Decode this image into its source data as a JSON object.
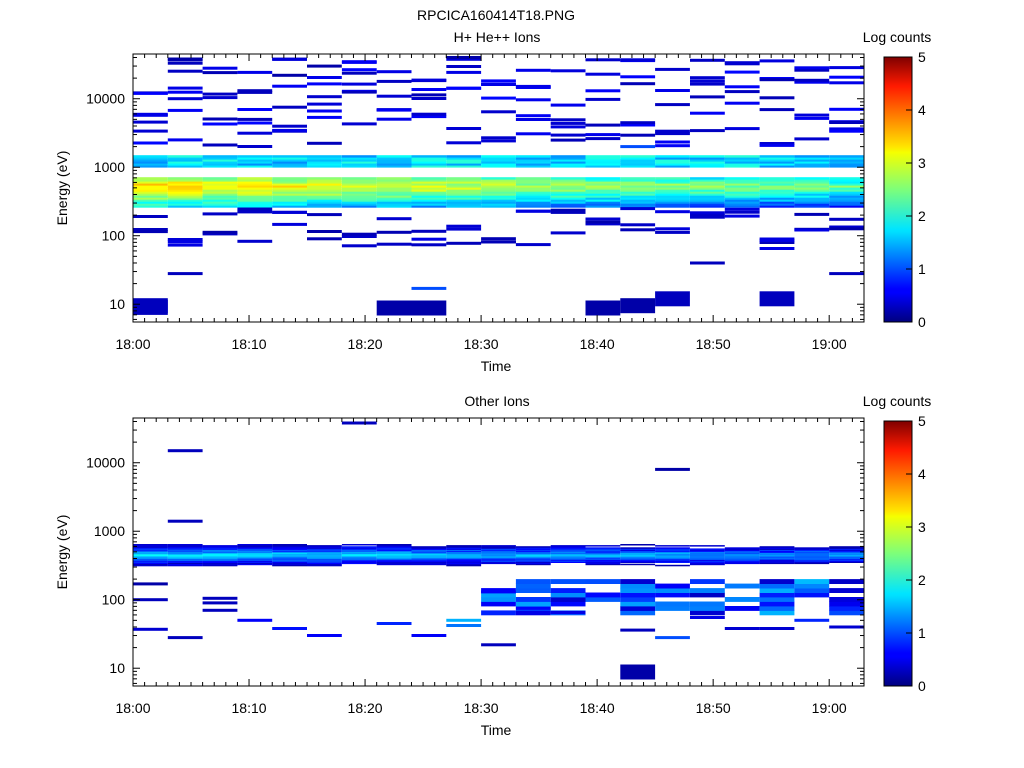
{
  "figure": {
    "title": "RPCICA160414T18.PNG"
  },
  "chart_data": [
    {
      "type": "heatmap",
      "title": "H+ He++ Ions",
      "xlabel": "Time",
      "ylabel": "Energy (eV)",
      "x_range": [
        "18:00",
        "19:03"
      ],
      "x_ticks": [
        "18:00",
        "18:10",
        "18:20",
        "18:30",
        "18:40",
        "18:50",
        "19:00"
      ],
      "y_scale": "log",
      "y_range": [
        5.5,
        45000
      ],
      "y_ticks": [
        "10",
        "100",
        "1000",
        "10000"
      ],
      "colorbar": {
        "label": "Log counts",
        "range": [
          0,
          5
        ],
        "ticks": [
          "0",
          "1",
          "2",
          "3",
          "4",
          "5"
        ]
      },
      "time_bins": [
        "18:00",
        "18:03",
        "18:06",
        "18:09",
        "18:12",
        "18:15",
        "18:18",
        "18:21",
        "18:24",
        "18:27",
        "18:30",
        "18:33",
        "18:36",
        "18:39",
        "18:42",
        "18:45",
        "18:48",
        "18:51",
        "18:54",
        "18:57",
        "19:00"
      ],
      "cells": [
        [
          0,
          9,
          0.3
        ],
        [
          0,
          9.5,
          0.3
        ],
        [
          1,
          28,
          0.3
        ],
        [
          1,
          38000,
          0.2
        ],
        [
          1,
          33000,
          0.3
        ],
        [
          3,
          5000,
          0.3
        ],
        [
          4,
          22000,
          0.2
        ],
        [
          5,
          30000,
          0.2
        ],
        [
          6,
          12500,
          0.3
        ],
        [
          7,
          8.8,
          0.2
        ],
        [
          8,
          8.8,
          0.2
        ],
        [
          8,
          17,
          1.0
        ],
        [
          9,
          40000,
          0.2
        ],
        [
          13,
          8.8,
          0.2
        ],
        [
          14,
          9.5,
          0.2
        ],
        [
          14,
          2000,
          1.0
        ],
        [
          15,
          12,
          0.3
        ],
        [
          16,
          40,
          0.3
        ],
        [
          18,
          12,
          0.3
        ],
        [
          18,
          65,
          0.5
        ],
        [
          20,
          28,
          0.3
        ],
        [
          20,
          4500,
          0.3
        ]
      ],
      "band": {
        "low_eV": 260,
        "high_eV": 1500,
        "peak_eV": 520,
        "peak_level_early": 3.4,
        "peak_level_late": 2.4,
        "gap_eV": [
          700,
          1000
        ]
      }
    },
    {
      "type": "heatmap",
      "title": "Other Ions",
      "xlabel": "Time",
      "ylabel": "Energy (eV)",
      "x_range": [
        "18:00",
        "19:03"
      ],
      "x_ticks": [
        "18:00",
        "18:10",
        "18:20",
        "18:30",
        "18:40",
        "18:50",
        "19:00"
      ],
      "y_scale": "log",
      "y_range": [
        5.5,
        45000
      ],
      "y_ticks": [
        "10",
        "100",
        "1000",
        "10000"
      ],
      "colorbar": {
        "label": "Log counts",
        "range": [
          0,
          5
        ],
        "ticks": [
          "0",
          "1",
          "2",
          "3",
          "4",
          "5"
        ]
      },
      "time_bins": [
        "18:00",
        "18:03",
        "18:06",
        "18:09",
        "18:12",
        "18:15",
        "18:18",
        "18:21",
        "18:24",
        "18:27",
        "18:30",
        "18:33",
        "18:36",
        "18:39",
        "18:42",
        "18:45",
        "18:48",
        "18:51",
        "18:54",
        "18:57",
        "19:00"
      ],
      "cells": [
        [
          0,
          37,
          0.4
        ],
        [
          0,
          100,
          0.3
        ],
        [
          0,
          170,
          0.2
        ],
        [
          1,
          15000,
          0.3
        ],
        [
          1,
          1400,
          0.3
        ],
        [
          1,
          28,
          0.3
        ],
        [
          2,
          70,
          0.3
        ],
        [
          2,
          90,
          0.3
        ],
        [
          2,
          105,
          0.3
        ],
        [
          3,
          50,
          0.6
        ],
        [
          4,
          38,
          0.7
        ],
        [
          5,
          30,
          0.6
        ],
        [
          6,
          38000,
          0.3
        ],
        [
          7,
          45,
          0.8
        ],
        [
          8,
          30,
          0.6
        ],
        [
          9,
          50,
          1.5
        ],
        [
          9,
          42,
          1.2
        ],
        [
          10,
          22,
          0.3
        ],
        [
          10,
          130,
          0.6
        ],
        [
          11,
          75,
          0.6
        ],
        [
          12,
          65,
          0.5
        ],
        [
          14,
          8.8,
          0.2
        ],
        [
          14,
          36,
          0.3
        ],
        [
          15,
          28,
          1.0
        ],
        [
          15,
          8000,
          0.2
        ],
        [
          16,
          55,
          0.5
        ],
        [
          17,
          38,
          0.4
        ],
        [
          18,
          38,
          0.4
        ],
        [
          19,
          50,
          0.8
        ],
        [
          20,
          40,
          0.4
        ]
      ],
      "band": {
        "low_eV": 250,
        "high_eV": 650,
        "peak_eV": 450,
        "peak_level_early": 1.8,
        "peak_level_late": 1.4,
        "lowband_eV": [
          60,
          200
        ]
      }
    }
  ]
}
